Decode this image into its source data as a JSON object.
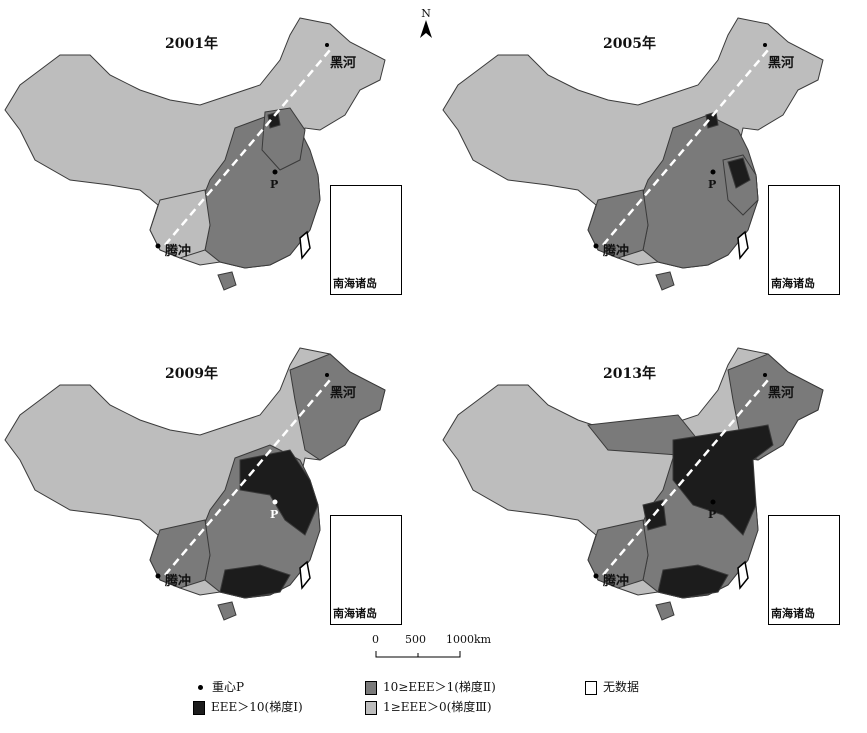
{
  "colors": {
    "gradient_I": "#1c1c1c",
    "gradient_II": "#7a7a7a",
    "gradient_III": "#bdbdbd",
    "no_data": "#ffffff",
    "border": "#3a3a3a"
  },
  "north_arrow": {
    "letter": "N"
  },
  "panels": [
    {
      "year": "2001年",
      "heihe": "黑河",
      "tengchong": "腾冲",
      "centroid": "P",
      "inset": "南海诸岛"
    },
    {
      "year": "2005年",
      "heihe": "黑河",
      "tengchong": "腾冲",
      "centroid": "P",
      "inset": "南海诸岛"
    },
    {
      "year": "2009年",
      "heihe": "黑河",
      "tengchong": "腾冲",
      "centroid": "P",
      "inset": "南海诸岛"
    },
    {
      "year": "2013年",
      "heihe": "黑河",
      "tengchong": "腾冲",
      "centroid": "P",
      "inset": "南海诸岛"
    }
  ],
  "scale": {
    "t0": "0",
    "t1": "500",
    "t2": "1000km"
  },
  "legend": {
    "centroid": "重心P",
    "grad1": "EEE＞10(梯度Ⅰ)",
    "grad2": "10≥EEE＞1(梯度Ⅱ)",
    "grad3": "1≥EEE＞0(梯度Ⅲ)",
    "nodata": "无数据"
  }
}
